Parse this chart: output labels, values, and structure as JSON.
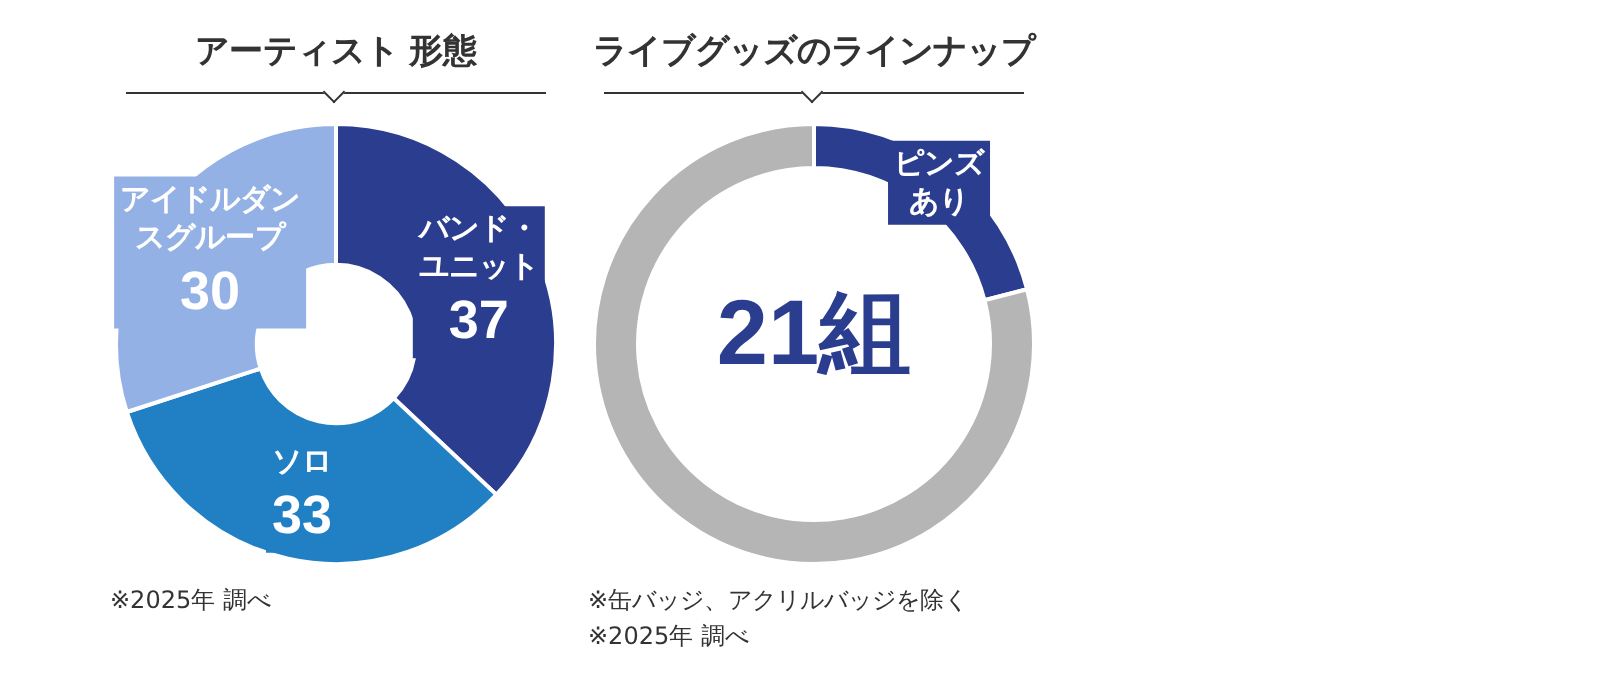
{
  "chart_data": [
    {
      "type": "donut",
      "title": "アーティスト 形態",
      "categories": [
        "バンド・ユニット",
        "ソロ",
        "アイドルダンスグループ"
      ],
      "values": [
        37,
        33,
        30
      ],
      "colors": [
        "#2b3d8f",
        "#2180c4",
        "#94b1e6"
      ],
      "data_labels": true,
      "legend": false,
      "annotations": [
        "※2025年 調べ"
      ]
    },
    {
      "type": "donut",
      "title": "ライブグッズのラインナップ",
      "subtitle": "21組",
      "categories": [
        "ピンズあり",
        null
      ],
      "values": [
        21,
        79
      ],
      "colors": [
        "#2b3d8f",
        "#b5b5b5"
      ],
      "legend": false,
      "annotations": [
        "※缶バッジ、アクリルバッジを除く",
        "※2025年 調べ"
      ]
    }
  ]
}
